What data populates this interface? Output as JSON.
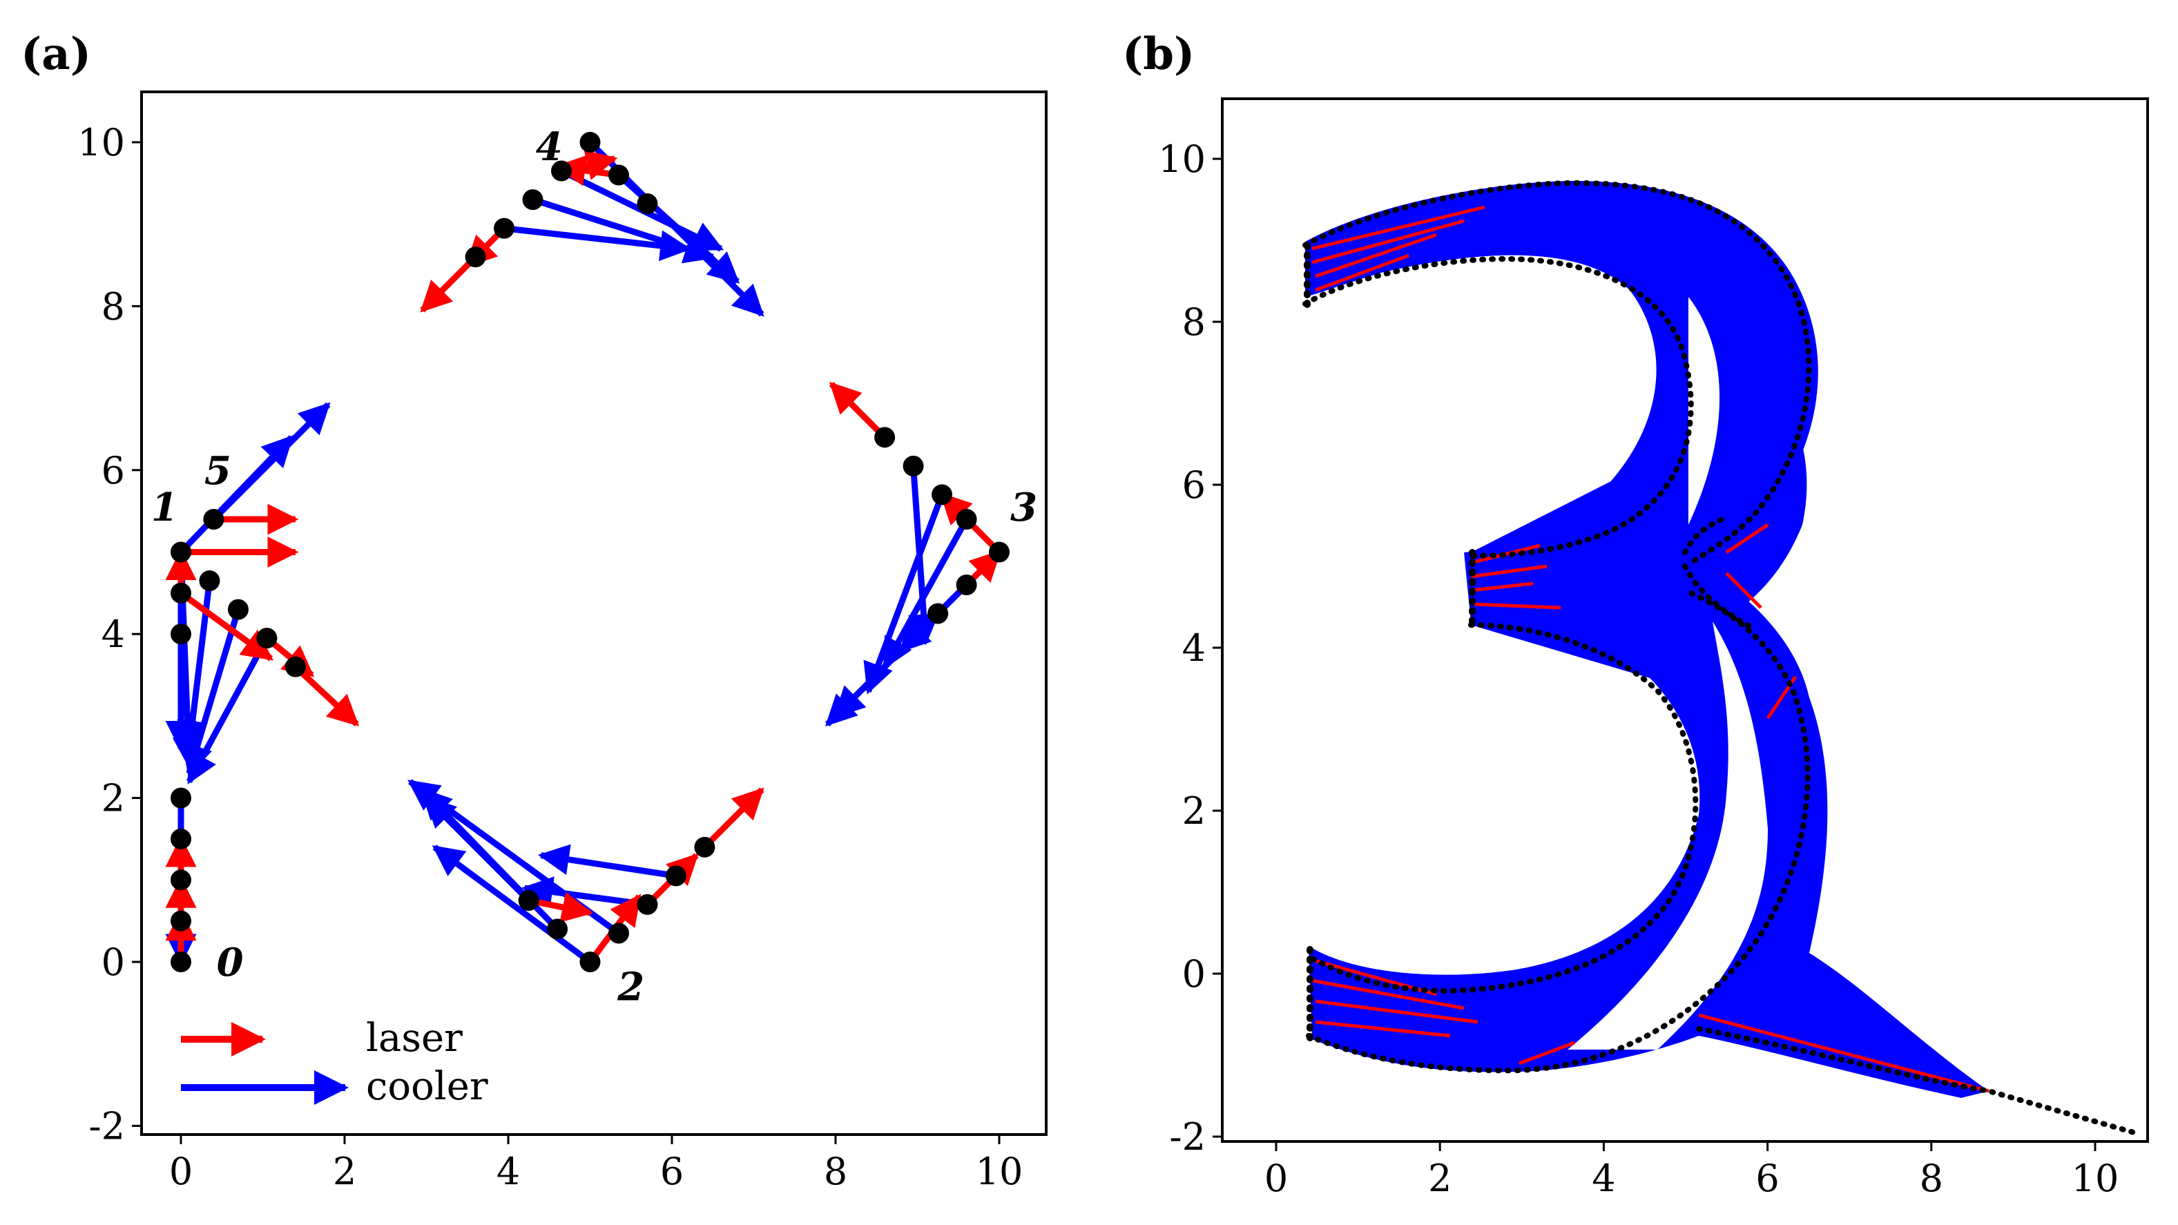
{
  "colors": {
    "laser": "#ff0000",
    "cooler": "#0000ff",
    "atom": "#000000"
  },
  "chart_data": [
    {
      "type": "scatter",
      "panel_label": "(a)",
      "xlim": [
        -0.5,
        10.5
      ],
      "ylim": [
        -2.2,
        10.6
      ],
      "x_ticks": [
        "0",
        "2",
        "4",
        "6",
        "8",
        "10"
      ],
      "y_ticks": [
        "-2",
        "0",
        "2",
        "4",
        "6",
        "8",
        "10"
      ],
      "site_labels": [
        {
          "text": "0",
          "x": 0.6,
          "y": 0.0
        },
        {
          "text": "1",
          "x": -0.2,
          "y": 5.55
        },
        {
          "text": "5",
          "x": 0.45,
          "y": 6.0
        },
        {
          "text": "2",
          "x": 5.5,
          "y": -0.3
        },
        {
          "text": "3",
          "x": 10.3,
          "y": 5.55
        },
        {
          "text": "4",
          "x": 4.5,
          "y": 9.95
        }
      ],
      "legend": [
        {
          "name": "laser",
          "color": "laser"
        },
        {
          "name": "cooler",
          "color": "cooler"
        }
      ],
      "legend_position": "bottom-left",
      "atoms": [
        [
          0,
          0
        ],
        [
          0,
          0.5
        ],
        [
          0,
          1
        ],
        [
          0,
          1.5
        ],
        [
          0,
          2
        ],
        [
          0,
          4
        ],
        [
          0,
          4.5
        ],
        [
          0,
          5
        ],
        [
          0.35,
          4.65
        ],
        [
          0.7,
          4.3
        ],
        [
          1.05,
          3.95
        ],
        [
          1.4,
          3.6
        ],
        [
          0.4,
          5.4
        ],
        [
          4.25,
          0.75
        ],
        [
          4.6,
          0.4
        ],
        [
          5,
          0
        ],
        [
          5.35,
          0.35
        ],
        [
          5.7,
          0.7
        ],
        [
          6.05,
          1.05
        ],
        [
          6.4,
          1.4
        ],
        [
          10,
          5
        ],
        [
          9.6,
          5.4
        ],
        [
          9.3,
          5.7
        ],
        [
          8.95,
          6.05
        ],
        [
          8.6,
          6.4
        ],
        [
          9.6,
          4.6
        ],
        [
          9.25,
          4.25
        ],
        [
          3.6,
          8.6
        ],
        [
          3.95,
          8.95
        ],
        [
          4.3,
          9.3
        ],
        [
          4.65,
          9.65
        ],
        [
          5,
          10
        ],
        [
          5.35,
          9.6
        ],
        [
          5.7,
          9.25
        ]
      ],
      "laser_arrows": [
        [
          0,
          4.5,
          0,
          5.0
        ],
        [
          0,
          1,
          0,
          1.5
        ],
        [
          0,
          0.5,
          0,
          1.0
        ],
        [
          0,
          0,
          0,
          0.6
        ],
        [
          0,
          5,
          1.4,
          5
        ],
        [
          0.4,
          5.4,
          1.4,
          5.4
        ],
        [
          0,
          4.5,
          1.1,
          3.7
        ],
        [
          1.4,
          3.6,
          2.15,
          2.9
        ],
        [
          1.05,
          3.95,
          1.6,
          3.5
        ],
        [
          4.25,
          0.75,
          5.0,
          0.6
        ],
        [
          5,
          0,
          5.6,
          0.8
        ],
        [
          6.4,
          1.4,
          7.1,
          2.1
        ],
        [
          5.7,
          0.7,
          6.3,
          1.3
        ],
        [
          10,
          5,
          9.3,
          5.7
        ],
        [
          8.6,
          6.4,
          7.95,
          7.05
        ],
        [
          9.6,
          4.6,
          10.0,
          5.0
        ],
        [
          4.65,
          9.65,
          5.3,
          9.8
        ],
        [
          3.6,
          8.6,
          2.95,
          7.95
        ],
        [
          3.95,
          8.95,
          3.5,
          8.5
        ],
        [
          5.35,
          9.6,
          4.6,
          9.7
        ]
      ],
      "cooler_arrows": [
        [
          0,
          5,
          0,
          2.6
        ],
        [
          0,
          5,
          0.1,
          2.4
        ],
        [
          0.35,
          4.65,
          0.1,
          2.6
        ],
        [
          0.7,
          4.3,
          0.1,
          2.3
        ],
        [
          1.05,
          3.95,
          0.1,
          2.2
        ],
        [
          0,
          2,
          0,
          0
        ],
        [
          0,
          5,
          1.35,
          6.4
        ],
        [
          0.4,
          5.4,
          1.8,
          6.8
        ],
        [
          4.25,
          0.75,
          3.0,
          2.0
        ],
        [
          4.6,
          0.4,
          2.95,
          2.1
        ],
        [
          5,
          0,
          3.1,
          1.4
        ],
        [
          5.35,
          0.35,
          2.8,
          2.2
        ],
        [
          6.05,
          1.05,
          4.4,
          1.3
        ],
        [
          5.7,
          0.7,
          4.2,
          0.9
        ],
        [
          8.95,
          6.05,
          9.1,
          3.9
        ],
        [
          9.3,
          5.7,
          8.4,
          3.3
        ],
        [
          9.6,
          5.4,
          8.6,
          3.6
        ],
        [
          9.25,
          4.25,
          8.0,
          3.0
        ],
        [
          10,
          5,
          8.8,
          3.8
        ],
        [
          9.6,
          4.6,
          7.9,
          2.9
        ],
        [
          5,
          10,
          7.1,
          7.9
        ],
        [
          4.3,
          9.3,
          6.5,
          8.6
        ],
        [
          3.95,
          8.95,
          6.2,
          8.7
        ],
        [
          5.35,
          9.6,
          6.8,
          8.3
        ],
        [
          4.65,
          9.65,
          6.6,
          8.7
        ]
      ]
    },
    {
      "type": "scatter",
      "panel_label": "(b)",
      "xlim": [
        -0.5,
        10.5
      ],
      "ylim": [
        -2.2,
        10.6
      ],
      "x_ticks": [
        "0",
        "2",
        "4",
        "6",
        "8",
        "10"
      ],
      "y_ticks": [
        "-2",
        "0",
        "2",
        "4",
        "6",
        "8",
        "10"
      ]
    }
  ]
}
